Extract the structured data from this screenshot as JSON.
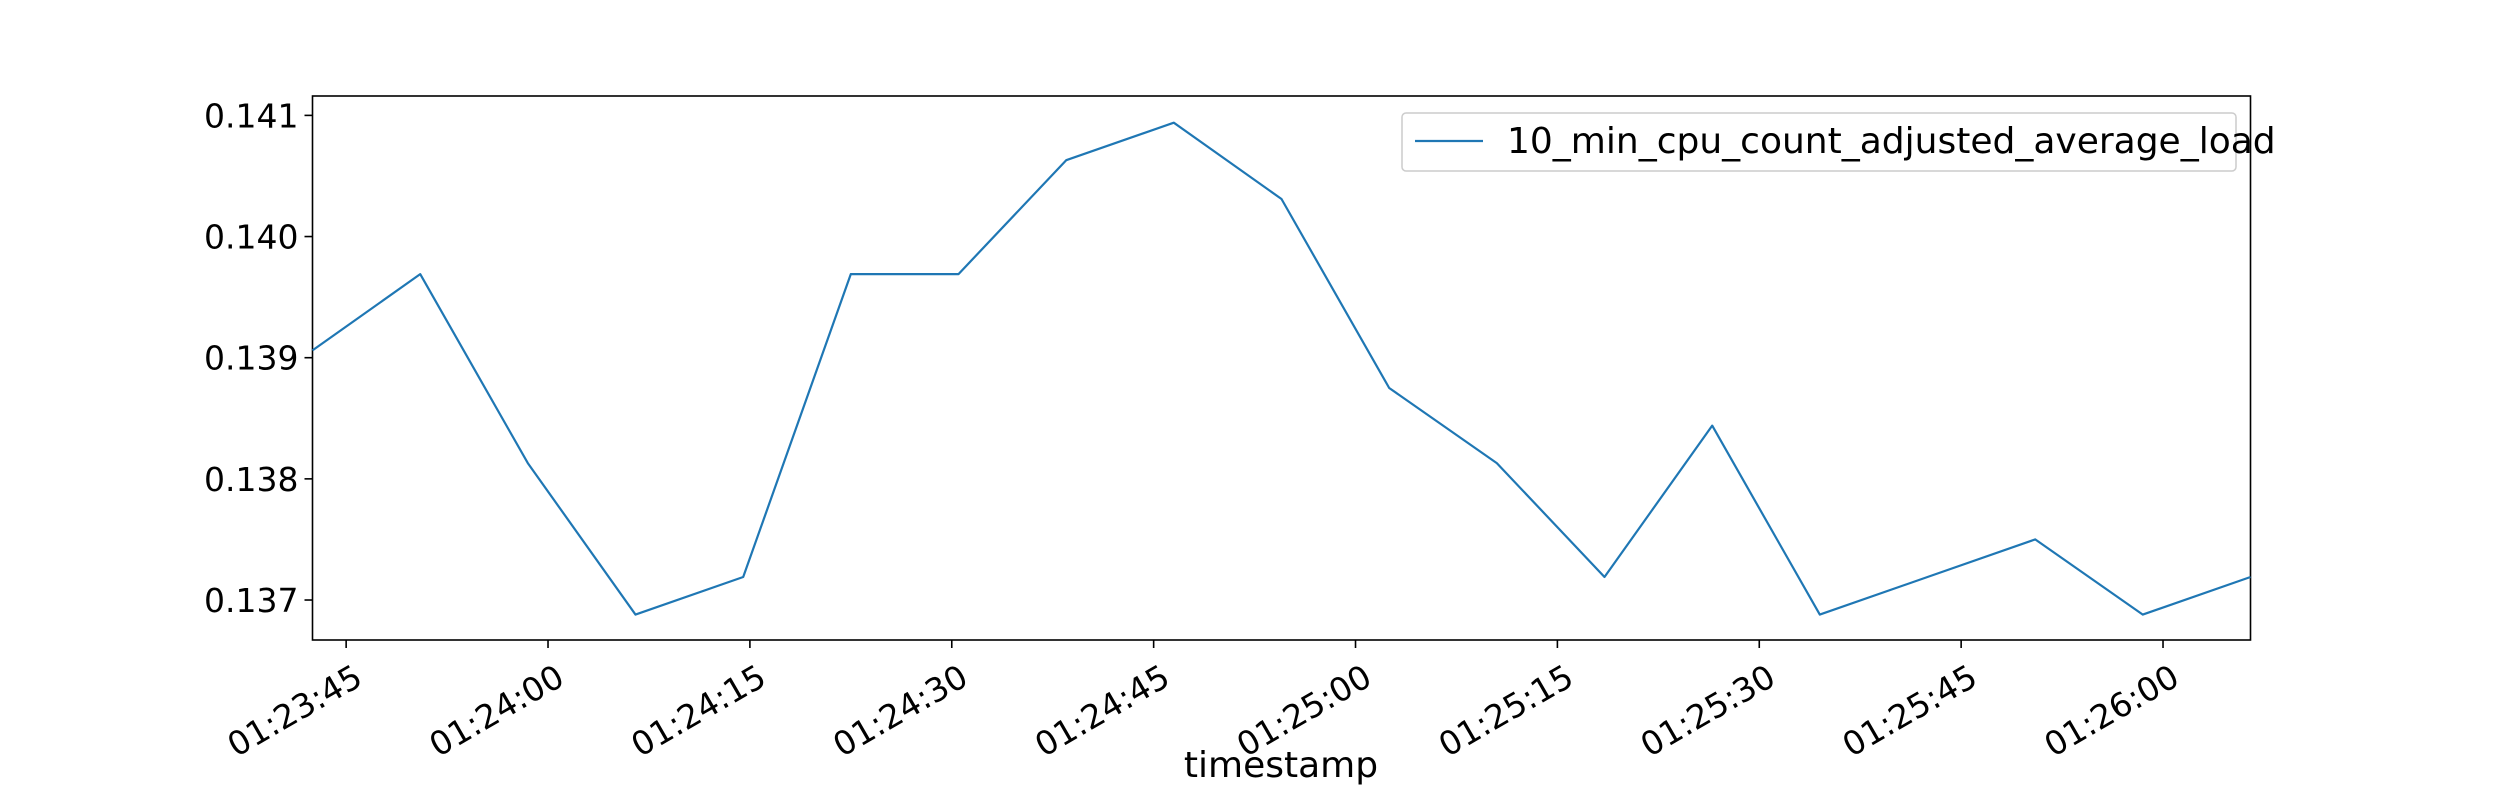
{
  "chart_data": {
    "type": "line",
    "xlabel": "timestamp",
    "ylabel": "",
    "title": "",
    "x_tick_labels": [
      "01:23:45",
      "01:24:00",
      "01:24:15",
      "01:24:30",
      "01:24:45",
      "01:25:00",
      "01:25:15",
      "01:25:30",
      "01:25:45",
      "01:26:00"
    ],
    "x_tick_seconds": [
      0,
      15,
      30,
      45,
      60,
      75,
      90,
      105,
      120,
      135
    ],
    "x_range_seconds": [
      -2.5,
      141.5
    ],
    "y_ticks": [
      0.137,
      0.138,
      0.139,
      0.14,
      0.141
    ],
    "y_tick_labels": [
      "0.137",
      "0.138",
      "0.139",
      "0.140",
      "0.141"
    ],
    "ylim": [
      0.13667,
      0.14116
    ],
    "grid": false,
    "legend_position": "top-right",
    "series": [
      {
        "name": "10_min_cpu_count_adjusted_average_load",
        "color": "#1f77b4",
        "x_seconds": [
          -2.5,
          5.5,
          13.5,
          21.5,
          29.5,
          37.5,
          45.5,
          53.5,
          61.5,
          69.5,
          77.5,
          85.5,
          93.5,
          101.5,
          109.5,
          117.5,
          125.5,
          133.5,
          141.5
        ],
        "values": [
          0.13906,
          0.13969,
          0.13813,
          0.13688,
          0.13719,
          0.13969,
          0.13969,
          0.14063,
          0.14094,
          0.14031,
          0.13875,
          0.13813,
          0.13719,
          0.13844,
          0.13688,
          0.13719,
          0.1375,
          0.13688,
          0.13719
        ]
      }
    ]
  }
}
